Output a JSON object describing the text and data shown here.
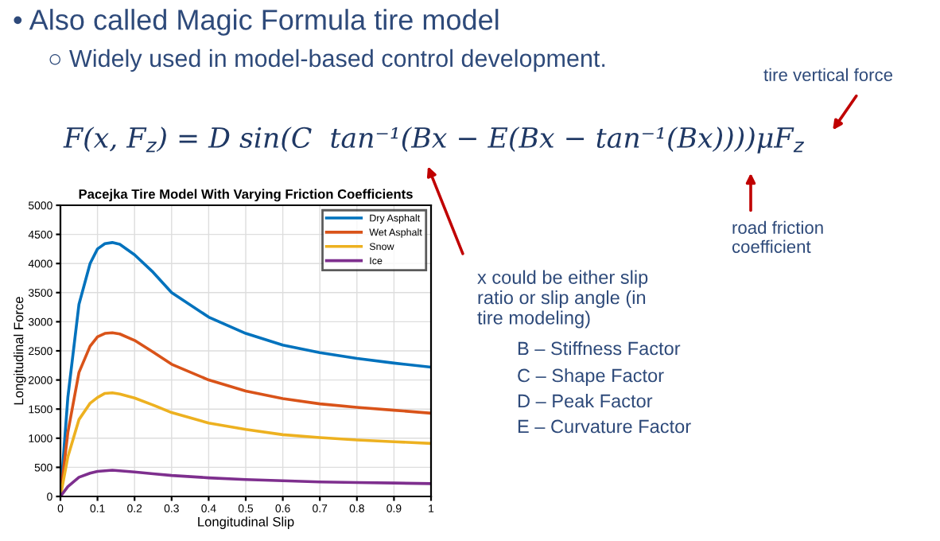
{
  "chart_data": {
    "type": "line",
    "title": "Pacejka Tire Model With Varying Friction Coefficients",
    "xlabel": "Longitudinal Slip",
    "ylabel": "Longitudinal Force",
    "x": [
      0,
      0.02,
      0.05,
      0.08,
      0.1,
      0.12,
      0.14,
      0.16,
      0.2,
      0.25,
      0.3,
      0.4,
      0.5,
      0.6,
      0.7,
      0.8,
      0.9,
      1.0
    ],
    "series": [
      {
        "name": "Dry Asphalt",
        "color": "#0072bd",
        "values": [
          0,
          1700,
          3300,
          4000,
          4250,
          4340,
          4360,
          4330,
          4150,
          3850,
          3500,
          3080,
          2800,
          2600,
          2470,
          2370,
          2290,
          2220
        ]
      },
      {
        "name": "Wet Asphalt",
        "color": "#d95319",
        "values": [
          0,
          1100,
          2130,
          2580,
          2740,
          2800,
          2810,
          2790,
          2680,
          2480,
          2270,
          2000,
          1810,
          1680,
          1590,
          1530,
          1480,
          1430
        ]
      },
      {
        "name": "Snow",
        "color": "#edb120",
        "values": [
          0,
          680,
          1320,
          1600,
          1700,
          1770,
          1780,
          1760,
          1690,
          1570,
          1440,
          1260,
          1150,
          1060,
          1010,
          970,
          940,
          910
        ]
      },
      {
        "name": "Ice",
        "color": "#7e2f8e",
        "values": [
          0,
          170,
          330,
          400,
          430,
          440,
          450,
          440,
          420,
          390,
          360,
          320,
          290,
          270,
          250,
          240,
          230,
          220
        ]
      }
    ],
    "xlim": [
      0,
      1
    ],
    "xticks": [
      0,
      0.1,
      0.2,
      0.3,
      0.4,
      0.5,
      0.6,
      0.7,
      0.8,
      0.9,
      1
    ],
    "ylim": [
      0,
      5000
    ],
    "yticks": [
      0,
      500,
      1000,
      1500,
      2000,
      2500,
      3000,
      3500,
      4000,
      4500,
      5000
    ],
    "grid": true,
    "legend": "top right",
    "marker": "none",
    "line_style": "solid",
    "annotations": [
      "• Also called Magic Formula tire model",
      "○ Widely used in model-based control development.",
      "F(x, F$_{z}$) = D sin(C  tan⁻¹(Bx − E(Bx − tan⁻¹(Bx))))μF$_{z}$",
      "tire vertical force",
      "road friction\ncoefficient",
      "x could be either slip\nratio or slip angle (in\ntire modeling)",
      "B – Stiffness Factor",
      "C – Shape Factor",
      "D – Peak Factor",
      "E – Curvature Factor"
    ]
  }
}
